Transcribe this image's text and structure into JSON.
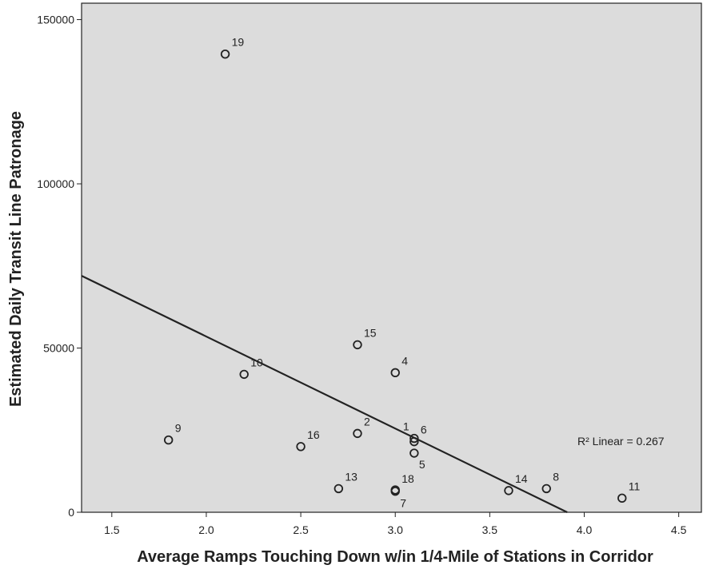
{
  "chart_data": {
    "type": "scatter",
    "xlabel": "Average Ramps Touching Down w/in 1/4-Mile of Stations in Corridor",
    "ylabel": "Estimated Daily Transit Line Patronage",
    "xlim": [
      1.34,
      4.62
    ],
    "ylim": [
      0,
      155000
    ],
    "x_ticks": [
      1.5,
      2.0,
      2.5,
      3.0,
      3.5,
      4.0,
      4.5
    ],
    "x_tick_labels": [
      "1.5",
      "2.0",
      "2.5",
      "3.0",
      "3.5",
      "4.0",
      "4.5"
    ],
    "y_ticks": [
      0,
      50000,
      100000,
      150000
    ],
    "y_tick_labels": [
      "0",
      "50000",
      "100000",
      "150000"
    ],
    "grid": false,
    "background_color": "#dcdcdc",
    "points": [
      {
        "label": "19",
        "x": 2.1,
        "y": 139500
      },
      {
        "label": "15",
        "x": 2.8,
        "y": 51000
      },
      {
        "label": "4",
        "x": 3.0,
        "y": 42500
      },
      {
        "label": "10",
        "x": 2.2,
        "y": 42000
      },
      {
        "label": "2",
        "x": 2.8,
        "y": 24000
      },
      {
        "label": "1",
        "x": 3.1,
        "y": 22500
      },
      {
        "label": "6",
        "x": 3.1,
        "y": 21500
      },
      {
        "label": "9",
        "x": 1.8,
        "y": 22000
      },
      {
        "label": "16",
        "x": 2.5,
        "y": 20000
      },
      {
        "label": "5",
        "x": 3.1,
        "y": 18000
      },
      {
        "label": "13",
        "x": 2.7,
        "y": 7200
      },
      {
        "label": "18",
        "x": 3.0,
        "y": 6800
      },
      {
        "label": "7",
        "x": 3.0,
        "y": 6400
      },
      {
        "label": "14",
        "x": 3.6,
        "y": 6600
      },
      {
        "label": "8",
        "x": 3.8,
        "y": 7200
      },
      {
        "label": "11",
        "x": 4.2,
        "y": 4300
      }
    ],
    "fit_line": {
      "x0": 1.34,
      "y0": 72000,
      "x1": 3.91,
      "y1": 0
    },
    "annotation": "R² Linear = 0.267"
  }
}
